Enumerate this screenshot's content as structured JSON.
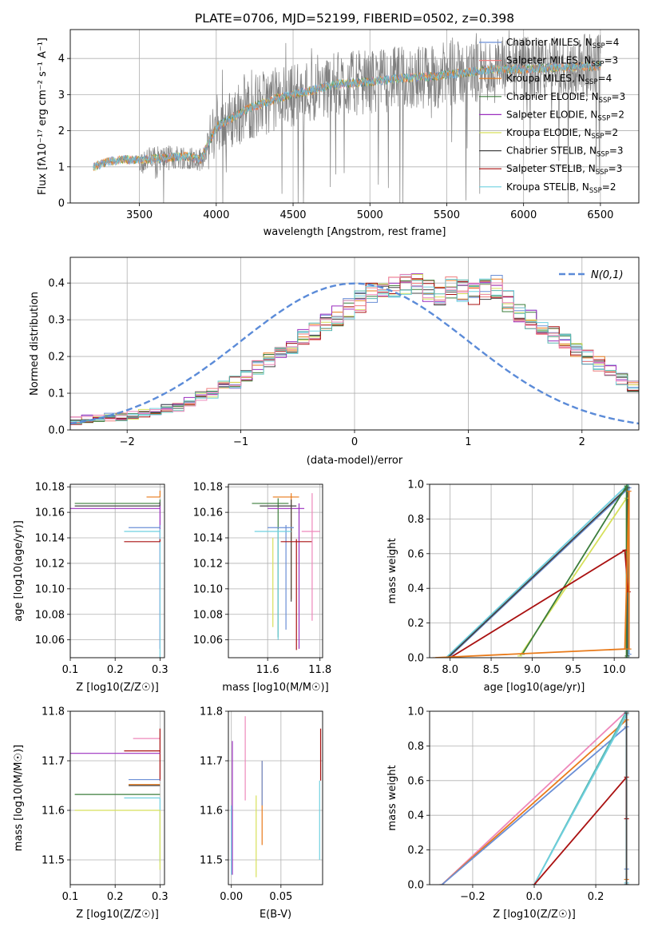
{
  "colors": {
    "chabrier_miles": "#6b8fd6",
    "salpeter_miles": "#ee7f7f",
    "kroupa_miles": "#e87a1a",
    "chabrier_elodie": "#3b7d3b",
    "salpeter_elodie": "#9b2fbf",
    "kroupa_elodie": "#d6e05a",
    "chabrier_stelib": "#444444",
    "salpeter_stelib": "#aa1111",
    "kroupa_stelib": "#6fd0e0",
    "pink": "#ee88bb",
    "teal": "#58b8b0",
    "gray": "#7f7f7f",
    "gauss": "#5b8bd8"
  },
  "chart_data": [
    {
      "id": "spectrum",
      "type": "line",
      "title": "PLATE=0706, MJD=52199, FIBERID=0502, z=0.398",
      "xlabel": "wavelength [Angstrom, rest frame]",
      "ylabel": "Flux [fλ10⁻¹⁷ erg cm⁻² s⁻¹ A⁻¹]",
      "xlim": [
        3050,
        6750
      ],
      "ylim": [
        0,
        4.8
      ],
      "xticks": [
        3500,
        4000,
        4500,
        5000,
        5500,
        6000,
        6500
      ],
      "yticks": [
        0,
        1,
        2,
        3,
        4
      ],
      "legend_position": "right",
      "legend": [
        {
          "label": "Chabrier MILES, N",
          "sub": "SSP",
          "tail": "=4",
          "color": "chabrier_miles"
        },
        {
          "label": "Salpeter MILES, N",
          "sub": "SSP",
          "tail": "=3",
          "color": "salpeter_miles"
        },
        {
          "label": "Kroupa MILES, N",
          "sub": "SSP",
          "tail": "=4",
          "color": "kroupa_miles"
        },
        {
          "label": "Chabrier ELODIE, N",
          "sub": "SSP",
          "tail": "=3",
          "color": "chabrier_elodie"
        },
        {
          "label": "Salpeter ELODIE, N",
          "sub": "SSP",
          "tail": "=2",
          "color": "salpeter_elodie"
        },
        {
          "label": "Kroupa ELODIE, N",
          "sub": "SSP",
          "tail": "=2",
          "color": "kroupa_elodie"
        },
        {
          "label": "Chabrier STELIB, N",
          "sub": "SSP",
          "tail": "=3",
          "color": "chabrier_stelib"
        },
        {
          "label": "Salpeter STELIB, N",
          "sub": "SSP",
          "tail": "=3",
          "color": "salpeter_stelib"
        },
        {
          "label": "Kroupa STELIB, N",
          "sub": "SSP",
          "tail": "=2",
          "color": "kroupa_stelib"
        }
      ],
      "continuum": [
        [
          3200,
          1.0
        ],
        [
          3300,
          1.15
        ],
        [
          3400,
          1.2
        ],
        [
          3500,
          1.2
        ],
        [
          3700,
          1.25
        ],
        [
          3800,
          1.3
        ],
        [
          3900,
          1.2
        ],
        [
          4000,
          2.1
        ],
        [
          4200,
          2.6
        ],
        [
          4400,
          2.9
        ],
        [
          4600,
          3.1
        ],
        [
          4800,
          3.3
        ],
        [
          5000,
          3.35
        ],
        [
          5200,
          3.45
        ],
        [
          5400,
          3.5
        ],
        [
          5600,
          3.6
        ],
        [
          5800,
          3.7
        ],
        [
          6000,
          3.7
        ],
        [
          6200,
          3.75
        ],
        [
          6500,
          3.8
        ]
      ]
    },
    {
      "id": "residuals",
      "type": "histogram",
      "xlabel": "(data-model)/error",
      "ylabel": "Normed distribution",
      "xlim": [
        -2.5,
        2.5
      ],
      "ylim": [
        0,
        0.47
      ],
      "xticks": [
        -2,
        -1,
        0,
        1,
        2
      ],
      "yticks": [
        0.0,
        0.1,
        0.2,
        0.3,
        0.4
      ],
      "grid": true,
      "legend": "N(0,1)",
      "legend_position": "top-right",
      "bin_width": 0.1,
      "bin_start": -2.5,
      "hist_base": [
        0.025,
        0.03,
        0.03,
        0.035,
        0.035,
        0.04,
        0.045,
        0.05,
        0.06,
        0.06,
        0.075,
        0.09,
        0.1,
        0.12,
        0.13,
        0.15,
        0.17,
        0.19,
        0.21,
        0.23,
        0.25,
        0.27,
        0.29,
        0.31,
        0.33,
        0.35,
        0.37,
        0.38,
        0.39,
        0.4,
        0.4,
        0.38,
        0.37,
        0.39,
        0.38,
        0.37,
        0.38,
        0.39,
        0.35,
        0.32,
        0.3,
        0.28,
        0.26,
        0.24,
        0.22,
        0.2,
        0.18,
        0.16,
        0.14,
        0.12,
        0.11,
        0.1,
        0.09,
        0.08,
        0.07,
        0.06,
        0.05,
        0.045,
        0.04,
        0.035,
        0.03
      ],
      "series_colors": [
        "chabrier_miles",
        "salpeter_miles",
        "kroupa_miles",
        "chabrier_elodie",
        "salpeter_elodie",
        "kroupa_elodie",
        "chabrier_stelib",
        "salpeter_stelib",
        "kroupa_stelib",
        "teal",
        "pink"
      ]
    },
    {
      "id": "age_vs_Z",
      "type": "errorbar",
      "xlabel": "Z [log10(Z/Z☉)]",
      "ylabel": "age [log10(age/yr)]",
      "xlim": [
        0.1,
        0.31
      ],
      "ylim": [
        10.046,
        10.182
      ],
      "xticks": [
        0.1,
        0.2,
        0.3
      ],
      "yticks": [
        10.06,
        10.08,
        10.1,
        10.12,
        10.14,
        10.16,
        10.18
      ],
      "points": [
        {
          "x": 0.3,
          "y": 10.172,
          "xerr": [
            0.03,
            0
          ],
          "yerr": [
            0,
            0.005
          ],
          "color": "kroupa_miles"
        },
        {
          "x": 0.3,
          "y": 10.167,
          "xerr": [
            0.19,
            0
          ],
          "yerr": [
            0,
            0.003
          ],
          "color": "chabrier_elodie"
        },
        {
          "x": 0.3,
          "y": 10.163,
          "xerr": [
            0.21,
            0
          ],
          "yerr": [
            0.11,
            0.005
          ],
          "color": "salpeter_elodie"
        },
        {
          "x": 0.3,
          "y": 10.148,
          "xerr": [
            0.07,
            0
          ],
          "yerr": [
            0,
            0.002
          ],
          "color": "chabrier_miles"
        },
        {
          "x": 0.3,
          "y": 10.145,
          "xerr": [
            0.08,
            0
          ],
          "yerr": [
            0.1,
            0.002
          ],
          "color": "kroupa_stelib"
        },
        {
          "x": 0.3,
          "y": 10.137,
          "xerr": [
            0.08,
            0
          ],
          "yerr": [
            0,
            0.002
          ],
          "color": "salpeter_stelib"
        },
        {
          "x": 0.3,
          "y": 10.165,
          "xerr": [
            0.19,
            0
          ],
          "yerr": [
            0,
            0.003
          ],
          "color": "chabrier_stelib"
        }
      ]
    },
    {
      "id": "age_vs_mass",
      "type": "errorbar",
      "xlabel": "mass [log10(M/M☉)]",
      "ylabel": "",
      "xlim": [
        11.45,
        11.81
      ],
      "ylim": [
        10.046,
        10.182
      ],
      "xticks": [
        11.6,
        11.8
      ],
      "yticks": [
        10.06,
        10.08,
        10.1,
        10.12,
        10.14,
        10.16,
        10.18
      ],
      "points": [
        {
          "x": 11.69,
          "y": 10.172,
          "xerr": [
            0.07,
            0.03
          ],
          "yerr": [
            0.08,
            0.003
          ],
          "color": "kroupa_miles"
        },
        {
          "x": 11.64,
          "y": 10.167,
          "xerr": [
            0.1,
            0.04
          ],
          "yerr": [
            0.105,
            0.004
          ],
          "color": "chabrier_elodie"
        },
        {
          "x": 11.72,
          "y": 10.163,
          "xerr": [
            0.12,
            0.02
          ],
          "yerr": [
            0.11,
            0.004
          ],
          "color": "salpeter_elodie"
        },
        {
          "x": 11.69,
          "y": 10.165,
          "xerr": [
            0.12,
            0.02
          ],
          "yerr": [
            0.075,
            0.005
          ],
          "color": "chabrier_stelib"
        },
        {
          "x": 11.67,
          "y": 10.148,
          "xerr": [
            0.07,
            0.03
          ],
          "yerr": [
            0.08,
            0.002
          ],
          "color": "chabrier_miles"
        },
        {
          "x": 11.64,
          "y": 10.145,
          "xerr": [
            0.09,
            0.05
          ],
          "yerr": [
            0.085,
            0.002
          ],
          "color": "kroupa_stelib"
        },
        {
          "x": 11.71,
          "y": 10.137,
          "xerr": [
            0.06,
            0.06
          ],
          "yerr": [
            0.085,
            0.002
          ],
          "color": "salpeter_stelib"
        },
        {
          "x": 11.77,
          "y": 10.145,
          "xerr": [
            0.04,
            0.03
          ],
          "yerr": [
            0.07,
            0.03
          ],
          "color": "pink"
        },
        {
          "x": 11.62,
          "y": 10.14,
          "xerr": [
            0,
            0
          ],
          "yerr": [
            0.07,
            0.0
          ],
          "color": "kroupa_elodie"
        }
      ]
    },
    {
      "id": "mass_weight_vs_age",
      "type": "line",
      "xlabel": "age [log10(age/yr)]",
      "ylabel": "mass weight",
      "xlim": [
        7.75,
        10.3
      ],
      "ylim": [
        0,
        1.0
      ],
      "xticks": [
        8.0,
        8.5,
        9.0,
        9.5,
        10.0
      ],
      "yticks": [
        0.0,
        0.2,
        0.4,
        0.6,
        0.8,
        1.0
      ],
      "grid": true,
      "series": [
        {
          "color": "chabrier_miles",
          "x": [
            7.98,
            10.18,
            10.18
          ],
          "y": [
            0,
            0.98,
            0.02
          ]
        },
        {
          "color": "kroupa_stelib",
          "x": [
            7.95,
            10.17,
            10.17
          ],
          "y": [
            0,
            1.0,
            0
          ]
        },
        {
          "color": "chabrier_stelib",
          "x": [
            7.97,
            10.16,
            10.16
          ],
          "y": [
            0,
            0.98,
            0.01
          ]
        },
        {
          "color": "kroupa_elodie",
          "x": [
            8.85,
            10.15,
            10.15
          ],
          "y": [
            0.01,
            0.92,
            0
          ]
        },
        {
          "color": "chabrier_elodie",
          "x": [
            8.88,
            10.15,
            10.15
          ],
          "y": [
            0.02,
            0.99,
            0
          ]
        },
        {
          "color": "salpeter_stelib",
          "x": [
            8.0,
            10.13,
            10.17,
            10.17
          ],
          "y": [
            0,
            0.62,
            0.38,
            0.38
          ]
        },
        {
          "color": "kroupa_miles",
          "x": [
            7.82,
            10.13,
            10.18,
            10.18
          ],
          "y": [
            0,
            0.05,
            0.96,
            0.05
          ]
        }
      ]
    },
    {
      "id": "mass_vs_Z",
      "type": "errorbar",
      "xlabel": "Z [log10(Z/Z☉)]",
      "ylabel": "mass [log10(M/M☉)]",
      "xlim": [
        0.1,
        0.31
      ],
      "ylim": [
        11.45,
        11.8
      ],
      "xticks": [
        0.1,
        0.2,
        0.3
      ],
      "yticks": [
        11.5,
        11.6,
        11.7,
        11.8
      ],
      "points": [
        {
          "x": 0.3,
          "y": 11.745,
          "xerr": [
            0.06,
            0
          ],
          "yerr": [
            0,
            0
          ],
          "color": "pink"
        },
        {
          "x": 0.3,
          "y": 11.72,
          "xerr": [
            0.08,
            0
          ],
          "yerr": [
            0.06,
            0.045
          ],
          "color": "salpeter_stelib"
        },
        {
          "x": 0.3,
          "y": 11.715,
          "xerr": [
            0.2,
            0
          ],
          "yerr": [
            0,
            0
          ],
          "color": "salpeter_elodie"
        },
        {
          "x": 0.3,
          "y": 11.662,
          "xerr": [
            0.07,
            0
          ],
          "yerr": [
            0,
            0
          ],
          "color": "chabrier_miles"
        },
        {
          "x": 0.3,
          "y": 11.652,
          "xerr": [
            0.07,
            0
          ],
          "yerr": [
            0,
            0
          ],
          "color": "kroupa_miles"
        },
        {
          "x": 0.3,
          "y": 11.65,
          "xerr": [
            0.07,
            0
          ],
          "yerr": [
            0,
            0
          ],
          "color": "chabrier_stelib"
        },
        {
          "x": 0.3,
          "y": 11.632,
          "xerr": [
            0.19,
            0
          ],
          "yerr": [
            0,
            0
          ],
          "color": "chabrier_elodie"
        },
        {
          "x": 0.3,
          "y": 11.625,
          "xerr": [
            0.08,
            0
          ],
          "yerr": [
            0.13,
            0
          ],
          "color": "kroupa_stelib"
        },
        {
          "x": 0.3,
          "y": 11.6,
          "xerr": [
            0.19,
            0
          ],
          "yerr": [
            0.12,
            0
          ],
          "color": "kroupa_elodie"
        }
      ]
    },
    {
      "id": "mass_vs_ebv",
      "type": "errorbar",
      "xlabel": "E(B-V)",
      "ylabel": "",
      "xlim": [
        -0.003,
        0.092
      ],
      "ylim": [
        11.45,
        11.8
      ],
      "xticks": [
        0.0,
        0.05
      ],
      "yticks": [
        11.5,
        11.6,
        11.7,
        11.8
      ],
      "points": [
        {
          "x": 0.001,
          "y": 11.6,
          "xerr": [
            0,
            0
          ],
          "yerr": [
            0.13,
            0.14
          ],
          "color": "salpeter_elodie"
        },
        {
          "x": 0.0,
          "y": 11.55,
          "xerr": [
            0,
            0
          ],
          "yerr": [
            0.08,
            0.06
          ],
          "color": "kroupa_stelib"
        },
        {
          "x": 0.014,
          "y": 11.7,
          "xerr": [
            0,
            0
          ],
          "yerr": [
            0.08,
            0.09
          ],
          "color": "pink"
        },
        {
          "x": 0.025,
          "y": 11.55,
          "xerr": [
            0,
            0
          ],
          "yerr": [
            0.085,
            0.08
          ],
          "color": "kroupa_elodie"
        },
        {
          "x": 0.031,
          "y": 11.6,
          "xerr": [
            0,
            0
          ],
          "yerr": [
            0.07,
            0.1
          ],
          "color": "kroupa_miles"
        },
        {
          "x": 0.031,
          "y": 11.65,
          "xerr": [
            0,
            0
          ],
          "yerr": [
            0.04,
            0.05
          ],
          "color": "chabrier_miles"
        },
        {
          "x": 0.09,
          "y": 11.72,
          "xerr": [
            0,
            0
          ],
          "yerr": [
            0.06,
            0.045
          ],
          "color": "salpeter_stelib"
        },
        {
          "x": 0.089,
          "y": 11.58,
          "xerr": [
            0,
            0
          ],
          "yerr": [
            0.08,
            0.08
          ],
          "color": "kroupa_stelib"
        }
      ]
    },
    {
      "id": "mass_weight_vs_Z",
      "type": "line",
      "xlabel": "Z [log10(Z/Z☉)]",
      "ylabel": "mass weight",
      "xlim": [
        -0.34,
        0.34
      ],
      "ylim": [
        0,
        1.0
      ],
      "xticks": [
        -0.2,
        0.0,
        0.2
      ],
      "yticks": [
        0.0,
        0.2,
        0.4,
        0.6,
        0.8,
        1.0
      ],
      "grid": true,
      "series": [
        {
          "color": "pink",
          "x": [
            -0.3,
            0.3,
            0.3
          ],
          "y": [
            0,
            1.0,
            0
          ]
        },
        {
          "color": "kroupa_miles",
          "x": [
            -0.3,
            0.3,
            0.3
          ],
          "y": [
            0,
            0.95,
            0.03
          ]
        },
        {
          "color": "chabrier_miles",
          "x": [
            -0.3,
            0.3,
            0.3
          ],
          "y": [
            0,
            0.91,
            0.09
          ]
        },
        {
          "color": "teal",
          "x": [
            0.0,
            0.3,
            0.3
          ],
          "y": [
            0,
            1.0,
            0
          ]
        },
        {
          "color": "kroupa_stelib",
          "x": [
            0.0,
            0.3,
            0.3
          ],
          "y": [
            0,
            0.98,
            0.01
          ]
        },
        {
          "color": "salpeter_stelib",
          "x": [
            0.0,
            0.3,
            0.3
          ],
          "y": [
            0,
            0.62,
            0.38
          ]
        },
        {
          "color": "chabrier_stelib",
          "x": [
            0.3,
            0.3
          ],
          "y": [
            0,
            0.99
          ]
        }
      ]
    }
  ]
}
